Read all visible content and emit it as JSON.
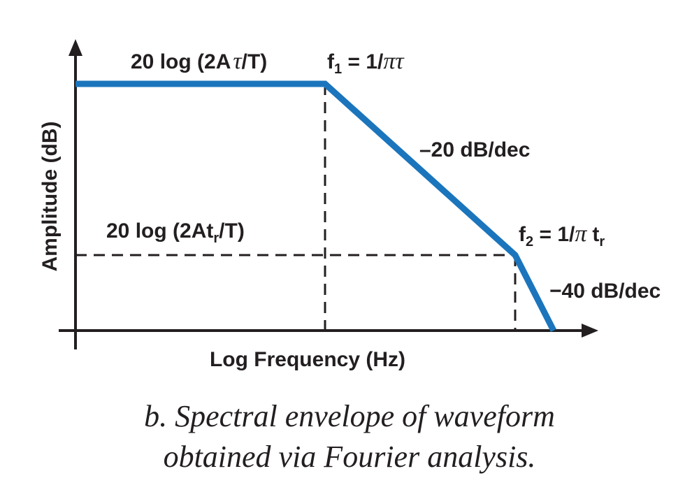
{
  "diagram": {
    "y_axis_label": "Amplitude (dB)",
    "x_axis_label": "Log Frequency (Hz)",
    "level_high": {
      "prefix": "20 log (2A",
      "tau": "τ",
      "suffix": "/T)"
    },
    "level_low": {
      "prefix": "20 log (2At",
      "sub": "r",
      "suffix": "/T)"
    },
    "f1": {
      "name": "f",
      "sub": "1",
      "expr": " = 1/",
      "sym": "πτ"
    },
    "f2": {
      "name": "f",
      "sub": "2",
      "expr": " = 1/",
      "sym": "π",
      "t": "t",
      "t_sub": "r"
    },
    "slope1": "–20 dB/dec",
    "slope2": "−40 dB/dec",
    "colors": {
      "envelope": "#1b75bc",
      "axes": "#231f20"
    }
  },
  "caption": {
    "line1": "b. Spectral envelope of waveform",
    "line2": "obtained via Fourier analysis."
  }
}
